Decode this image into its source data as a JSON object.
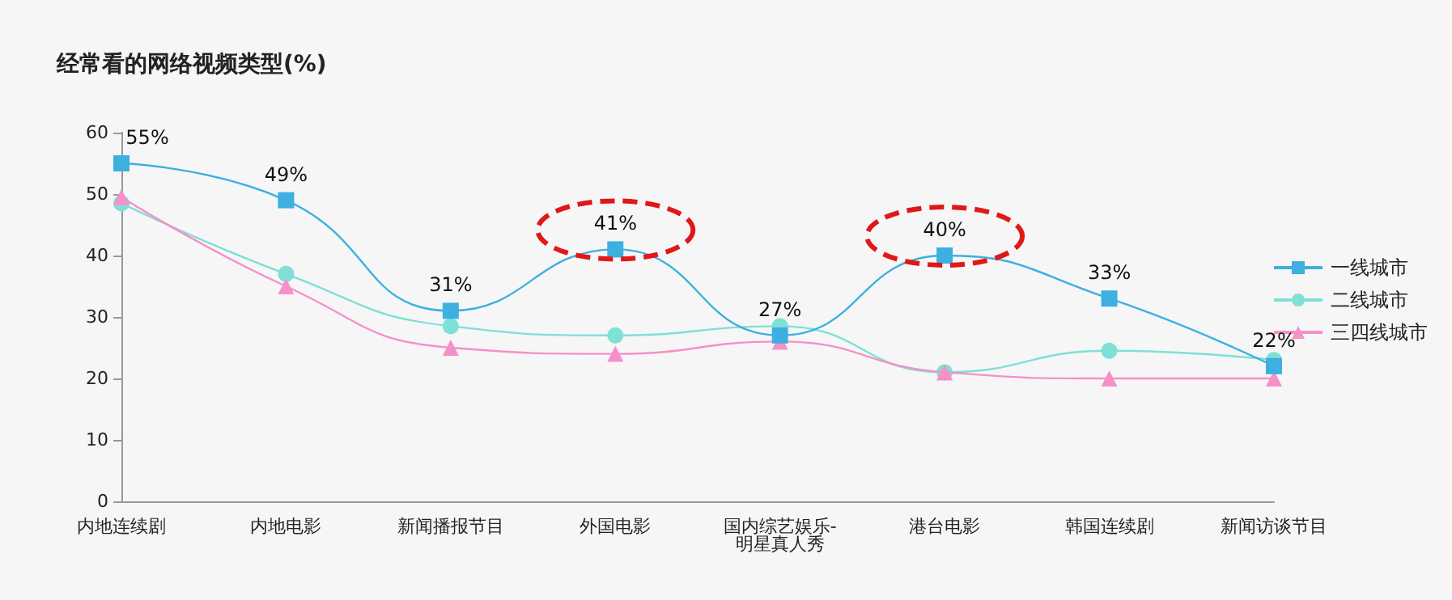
{
  "chart_data": {
    "type": "line",
    "title": "经常看的网络视频类型(%)",
    "categories": [
      "内地连续剧",
      "内地电影",
      "新闻播报节目",
      "外国电影",
      "国内综艺娱乐-明星真人秀",
      "港台电影",
      "韩国连续剧",
      "新闻访谈节目"
    ],
    "series": [
      {
        "name": "一线城市",
        "color": "#3db0e0",
        "marker": "square",
        "values": [
          55,
          49,
          31,
          41,
          27,
          40,
          33,
          22
        ],
        "value_labels": [
          "55%",
          "49%",
          "31%",
          "41%",
          "27%",
          "40%",
          "33%",
          "22%"
        ]
      },
      {
        "name": "二线城市",
        "color": "#7fe0d6",
        "marker": "circle",
        "values": [
          48.5,
          37,
          28.5,
          27,
          28.5,
          21,
          24.5,
          23
        ]
      },
      {
        "name": "三四线城市",
        "color": "#f590c8",
        "marker": "triangle",
        "values": [
          49.5,
          35,
          25,
          24,
          26,
          21,
          20,
          20
        ]
      }
    ],
    "ylim": [
      0,
      60
    ],
    "yticks": [
      0,
      10,
      20,
      30,
      40,
      50,
      60
    ],
    "grid": false,
    "legend": "right"
  }
}
